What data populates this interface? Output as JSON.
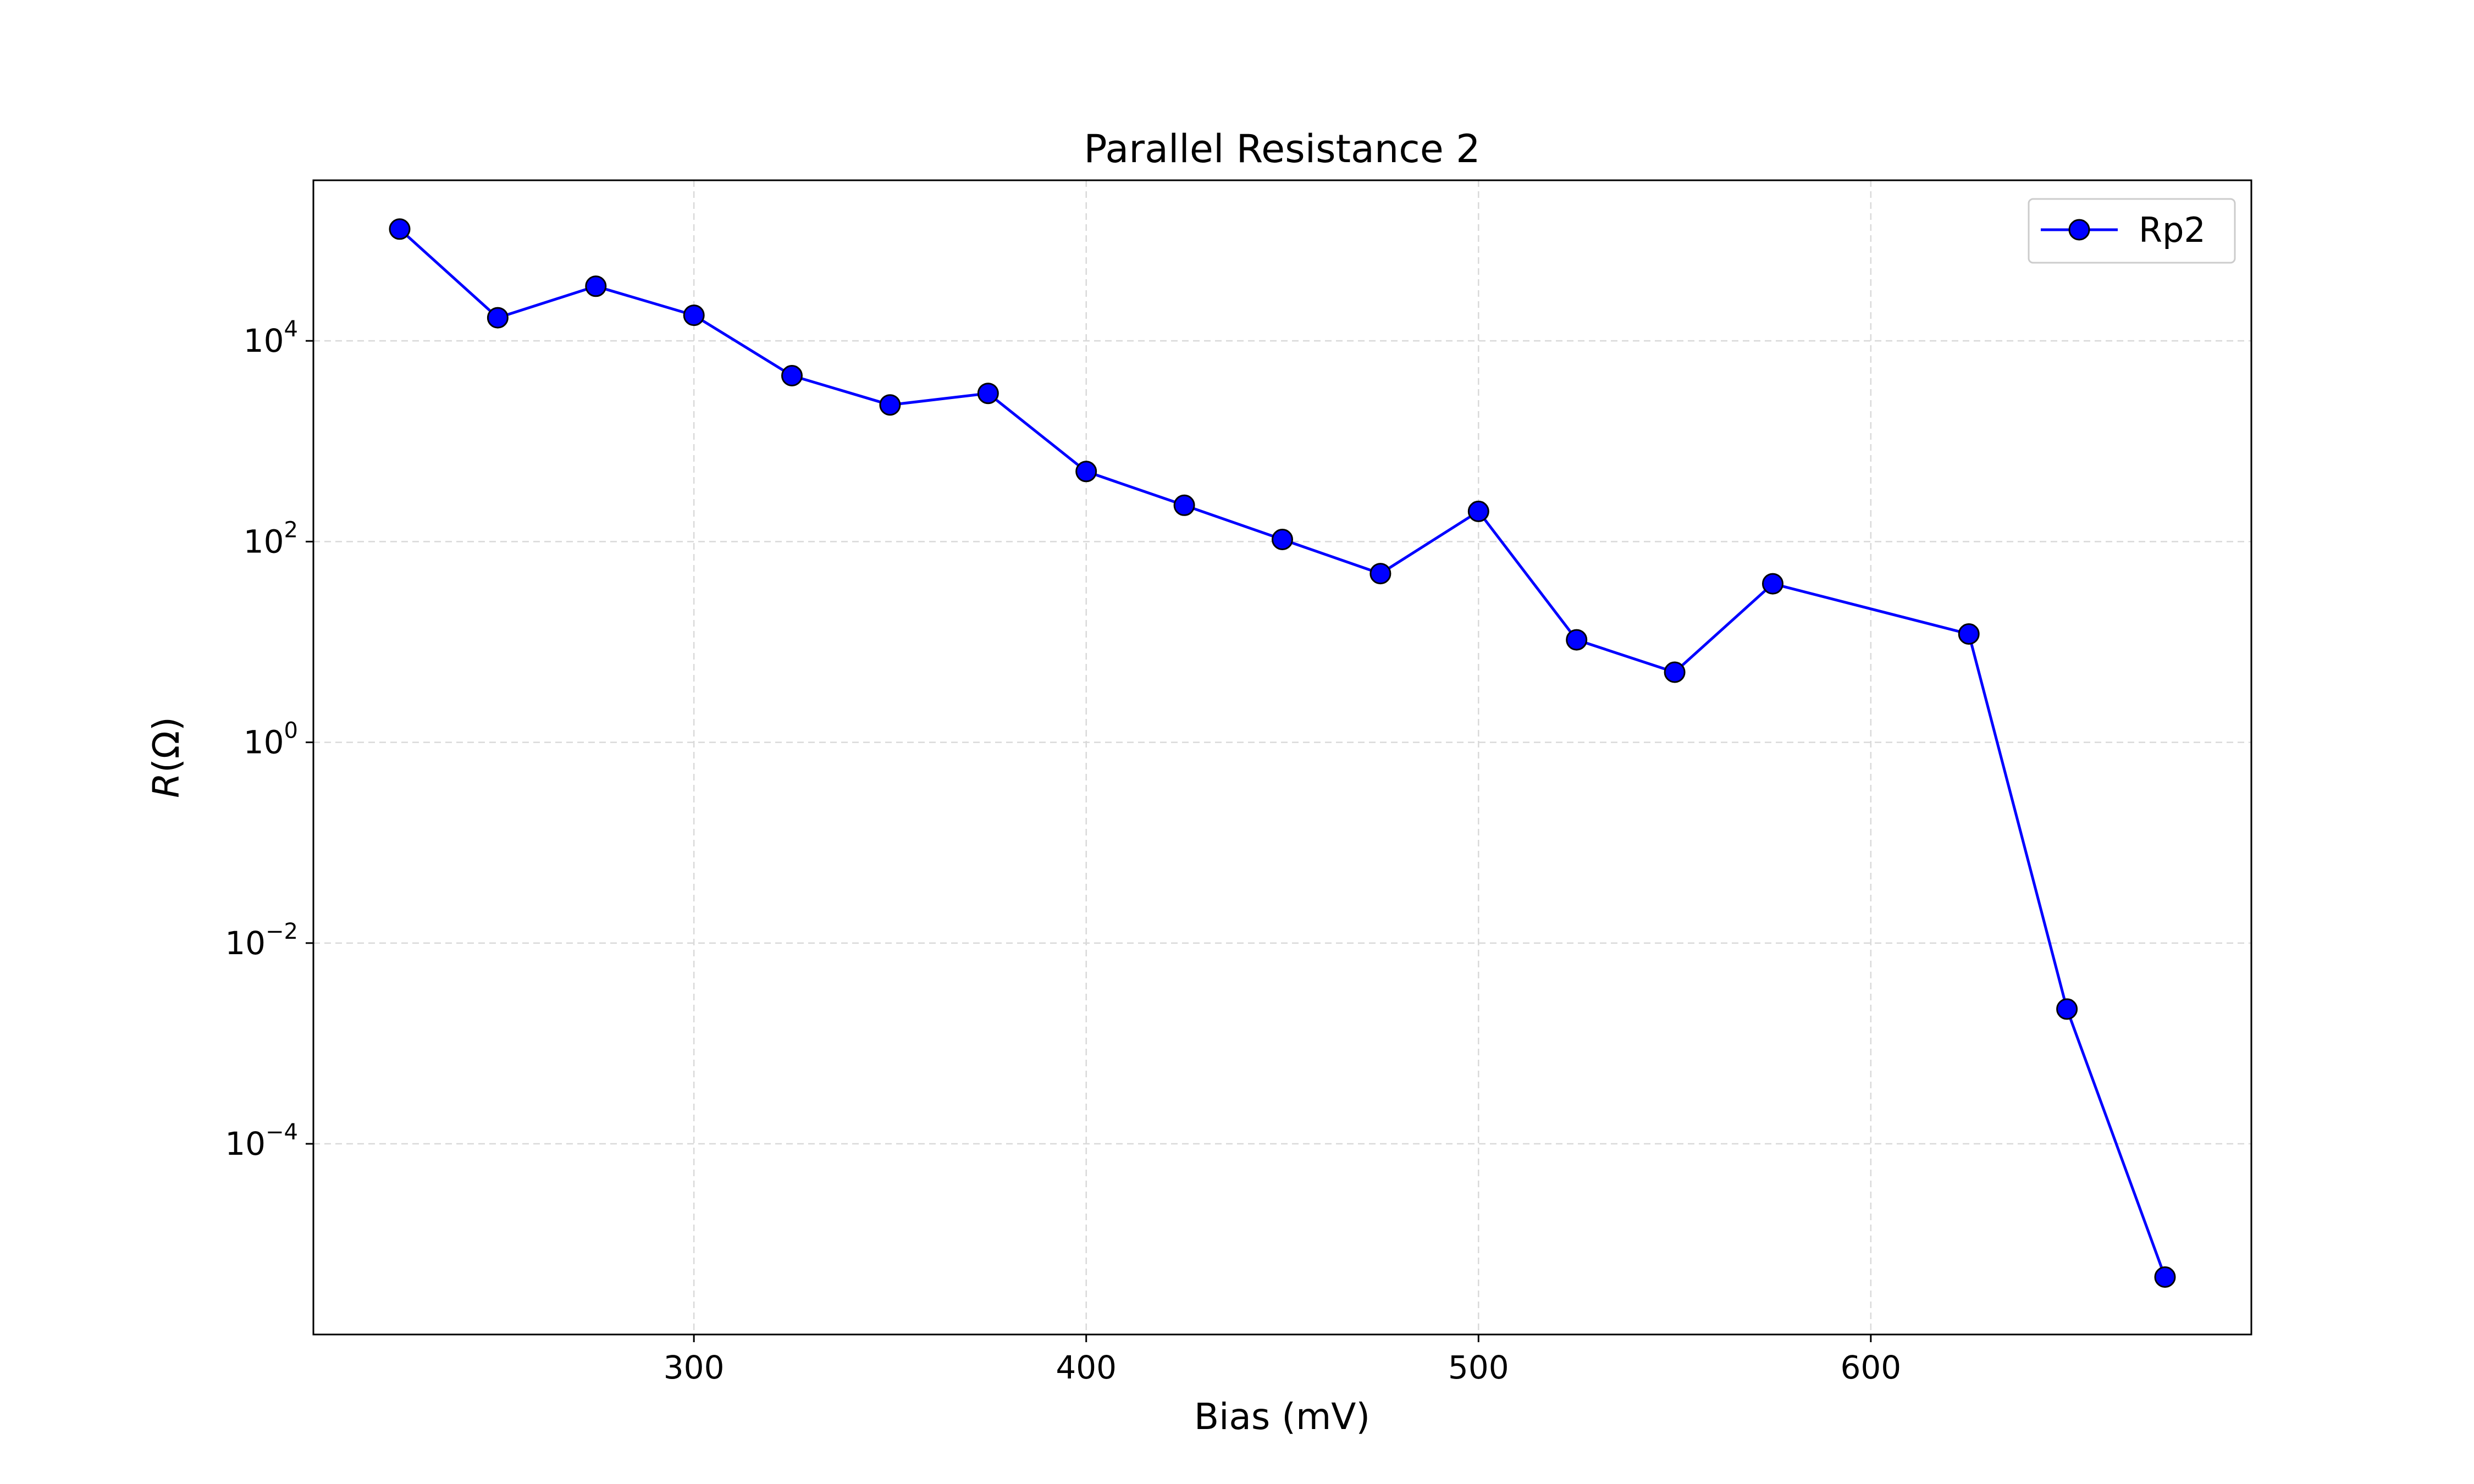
{
  "chart_data": {
    "type": "line",
    "title": "Parallel Resistance 2",
    "xlabel": "Bias (mV)",
    "ylabel": "R(Ω)",
    "ylabel_italic": "R",
    "ylabel_rest": "(Ω)",
    "yscale": "log",
    "xlim": [
      203,
      697
    ],
    "ylim_log10": [
      -5.9,
      5.6
    ],
    "x_ticks": [
      300,
      400,
      500,
      600
    ],
    "x_tick_labels": [
      "300",
      "400",
      "500",
      "600"
    ],
    "y_ticks_log10": [
      4,
      2,
      0,
      -2,
      -4
    ],
    "y_tick_labels": [
      {
        "base": "10",
        "exp": "4"
      },
      {
        "base": "10",
        "exp": "2"
      },
      {
        "base": "10",
        "exp": "0"
      },
      {
        "base": "10",
        "exp": "−2"
      },
      {
        "base": "10",
        "exp": "−4"
      }
    ],
    "grid": true,
    "legend_position": "top-right",
    "series": [
      {
        "name": "Rp2",
        "color": "#0000ff",
        "marker_color": "#0000ff",
        "x": [
          225,
          250,
          275,
          300,
          325,
          350,
          375,
          400,
          425,
          450,
          475,
          500,
          525,
          550,
          575,
          625,
          650,
          675
        ],
        "y": [
          130000,
          17000,
          35000,
          18000,
          4500,
          2300,
          3000,
          500,
          230,
          105,
          48,
          200,
          10.5,
          5,
          38,
          12,
          0.0022,
          4.7e-06
        ]
      }
    ]
  }
}
